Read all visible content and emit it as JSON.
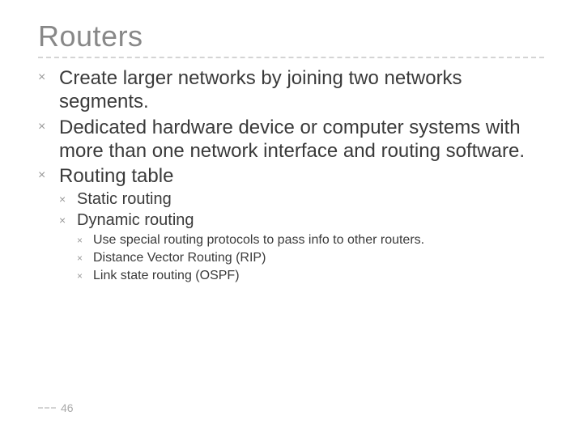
{
  "colors": {
    "title": "#888888",
    "body": "#3a3a3a",
    "bullet": "#9a9a9a",
    "rule": "#d4d4d4",
    "page_num": "#aaaaaa",
    "background": "#ffffff"
  },
  "typography": {
    "title_fontsize": 36,
    "l1_fontsize": 24,
    "l2_fontsize": 20,
    "l3_fontsize": 16,
    "page_fontsize": 14
  },
  "bullet_glyph": "×",
  "title": "Routers",
  "page_number": "46",
  "bullets": {
    "b1": "Create larger networks by joining two networks segments.",
    "b2": "Dedicated hardware device or computer systems with more than one network interface and routing software.",
    "b3": "Routing table",
    "b3_1": "Static routing",
    "b3_2": "Dynamic routing",
    "b3_2_1": "Use special routing protocols to pass info to other routers.",
    "b3_2_2": "Distance Vector Routing (RIP)",
    "b3_2_3": "Link state routing (OSPF)"
  }
}
